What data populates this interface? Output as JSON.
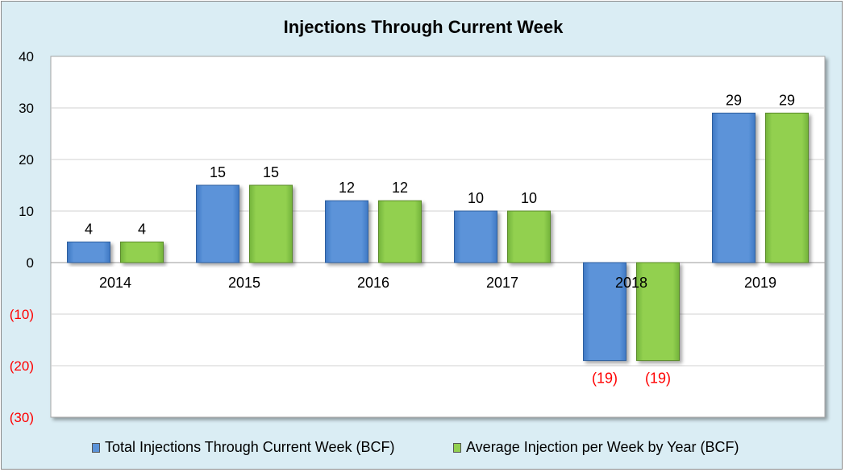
{
  "chart_data": {
    "type": "bar",
    "title": "Injections Through Current Week",
    "categories": [
      "2014",
      "2015",
      "2016",
      "2017",
      "2018",
      "2019"
    ],
    "series": [
      {
        "name": "Total Injections Through Current Week (BCF)",
        "values": [
          4,
          15,
          12,
          10,
          -19,
          29
        ],
        "color": "#5b93d9"
      },
      {
        "name": "Average Injection per Week by Year (BCF)",
        "values": [
          4,
          15,
          12,
          10,
          -19,
          29
        ],
        "color": "#92d050"
      }
    ],
    "data_labels": [
      [
        "4",
        "15",
        "12",
        "10",
        "(19)",
        "29"
      ],
      [
        "4",
        "15",
        "12",
        "10",
        "(19)",
        "29"
      ]
    ],
    "ylim": [
      -30,
      40
    ],
    "yticks": [
      40,
      30,
      20,
      10,
      0,
      -10,
      -20,
      -30
    ],
    "ytick_labels": [
      "40",
      "30",
      "20",
      "10",
      "0",
      "(10)",
      "(20)",
      "(30)"
    ],
    "negative_color": "#ff0000",
    "grid": true,
    "legend": "bottom",
    "background": "#daedf4",
    "plot_background": "#ffffff"
  }
}
